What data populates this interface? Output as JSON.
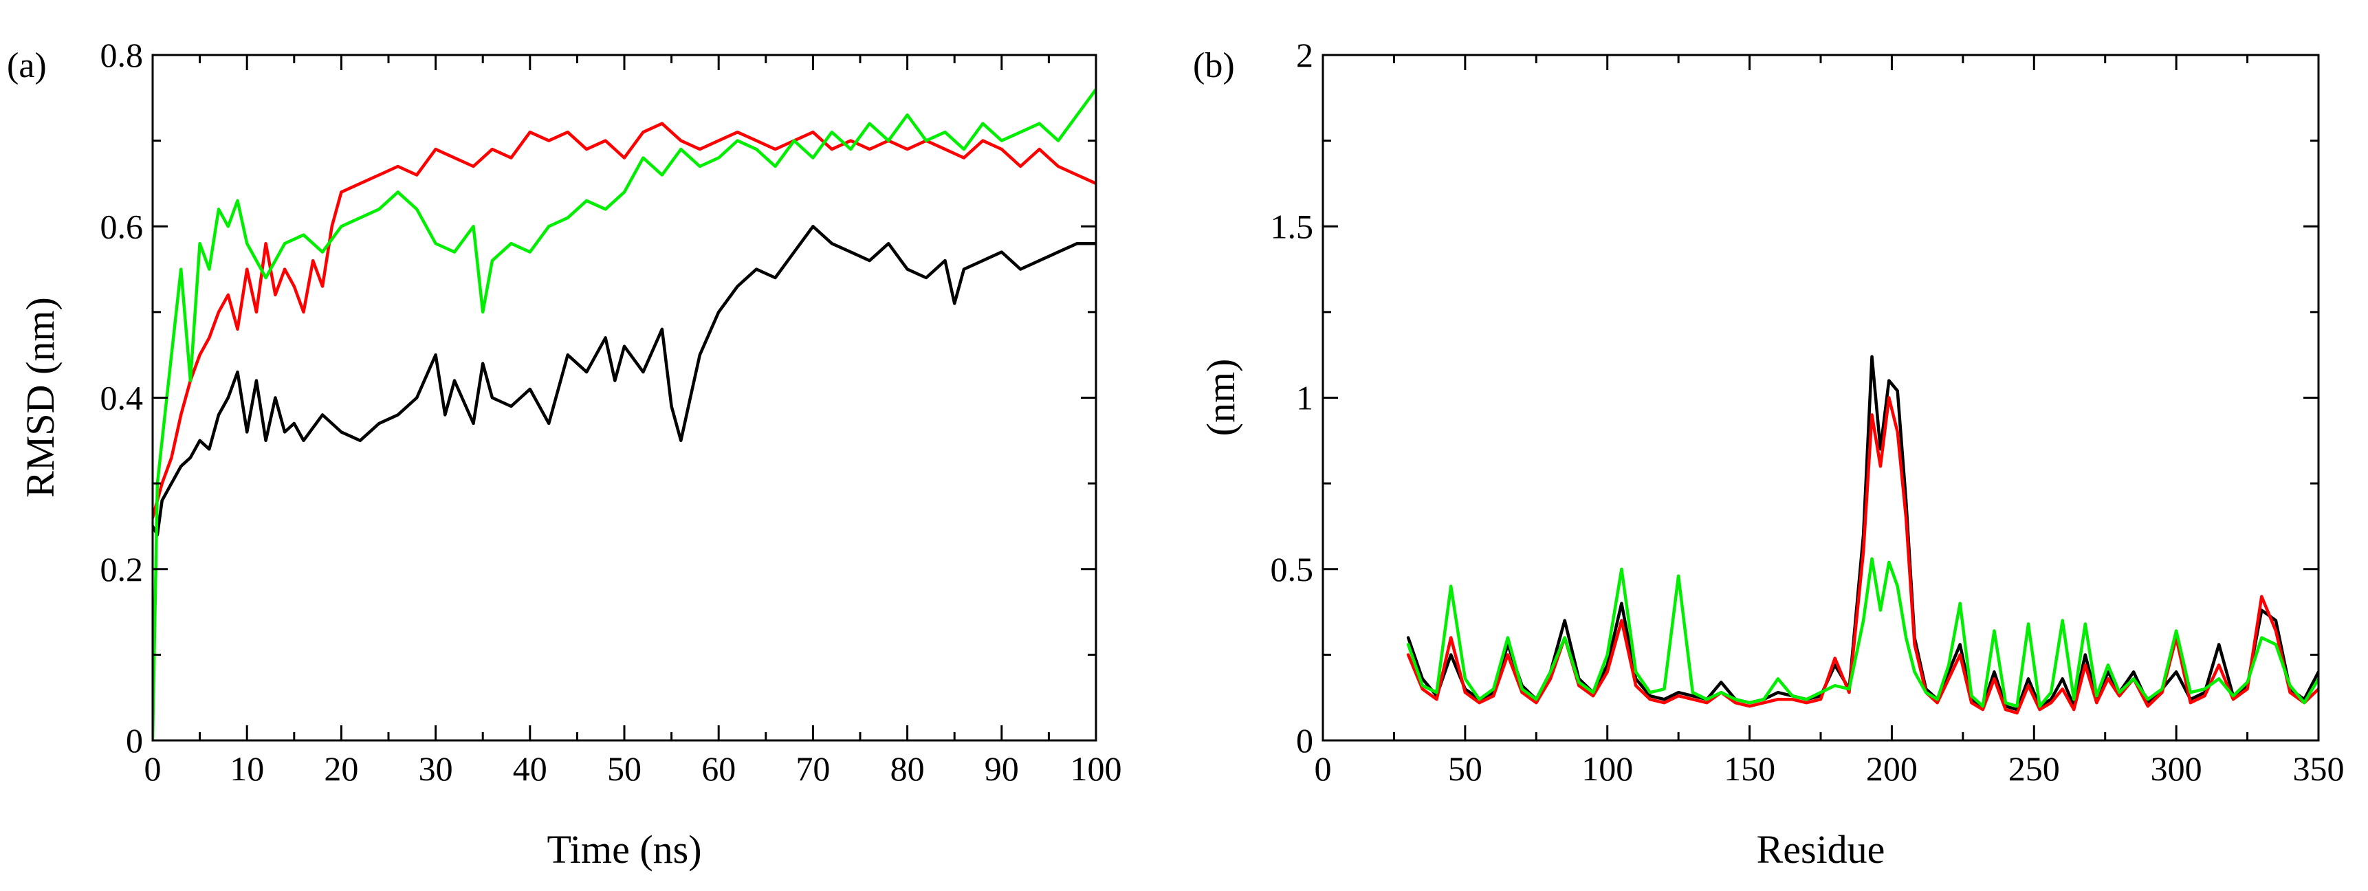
{
  "chart_data": [
    {
      "id": "a",
      "type": "line",
      "panel_label": "(a)",
      "title": "",
      "xlabel": "Time (ns)",
      "ylabel": "RMSD (nm)",
      "xlim": [
        0,
        100
      ],
      "ylim": [
        0,
        0.8
      ],
      "xticks": [
        0,
        10,
        20,
        30,
        40,
        50,
        60,
        70,
        80,
        90,
        100
      ],
      "yticks": [
        0,
        0.2,
        0.4,
        0.6,
        0.8
      ],
      "xtick_labels": [
        "0",
        "10",
        "20",
        "30",
        "40",
        "50",
        "60",
        "70",
        "80",
        "90",
        "100"
      ],
      "ytick_labels": [
        "0",
        "0.2",
        "0.4",
        "0.6",
        "0.8"
      ],
      "grid": false,
      "legend": "none",
      "series": [
        {
          "name": "black",
          "color": "#000000",
          "x": [
            0,
            0.5,
            1,
            2,
            3,
            4,
            5,
            6,
            7,
            8,
            9,
            10,
            11,
            12,
            13,
            14,
            15,
            16,
            18,
            20,
            22,
            24,
            26,
            28,
            30,
            31,
            32,
            34,
            35,
            36,
            38,
            40,
            42,
            44,
            46,
            48,
            49,
            50,
            52,
            54,
            55,
            56,
            57,
            58,
            60,
            62,
            64,
            66,
            68,
            70,
            72,
            74,
            76,
            78,
            80,
            82,
            84,
            85,
            86,
            88,
            90,
            92,
            94,
            96,
            98,
            100
          ],
          "y": [
            0.25,
            0.24,
            0.28,
            0.3,
            0.32,
            0.33,
            0.35,
            0.34,
            0.38,
            0.4,
            0.43,
            0.36,
            0.42,
            0.35,
            0.4,
            0.36,
            0.37,
            0.35,
            0.38,
            0.36,
            0.35,
            0.37,
            0.38,
            0.4,
            0.45,
            0.38,
            0.42,
            0.37,
            0.44,
            0.4,
            0.39,
            0.41,
            0.37,
            0.45,
            0.43,
            0.47,
            0.42,
            0.46,
            0.43,
            0.48,
            0.39,
            0.35,
            0.4,
            0.45,
            0.5,
            0.53,
            0.55,
            0.54,
            0.57,
            0.6,
            0.58,
            0.57,
            0.56,
            0.58,
            0.55,
            0.54,
            0.56,
            0.51,
            0.55,
            0.56,
            0.57,
            0.55,
            0.56,
            0.57,
            0.58,
            0.58
          ]
        },
        {
          "name": "red",
          "color": "#ff0000",
          "x": [
            0,
            0.5,
            1,
            2,
            3,
            4,
            5,
            6,
            7,
            8,
            9,
            10,
            11,
            12,
            13,
            14,
            15,
            16,
            17,
            18,
            19,
            20,
            22,
            24,
            26,
            28,
            30,
            32,
            34,
            36,
            38,
            40,
            42,
            44,
            46,
            48,
            50,
            52,
            54,
            56,
            58,
            60,
            62,
            64,
            66,
            68,
            70,
            72,
            74,
            76,
            78,
            80,
            82,
            84,
            86,
            88,
            90,
            92,
            94,
            96,
            98,
            100
          ],
          "y": [
            0.26,
            0.28,
            0.3,
            0.33,
            0.38,
            0.42,
            0.45,
            0.47,
            0.5,
            0.52,
            0.48,
            0.55,
            0.5,
            0.58,
            0.52,
            0.55,
            0.53,
            0.5,
            0.56,
            0.53,
            0.6,
            0.64,
            0.65,
            0.66,
            0.67,
            0.66,
            0.69,
            0.68,
            0.67,
            0.69,
            0.68,
            0.71,
            0.7,
            0.71,
            0.69,
            0.7,
            0.68,
            0.71,
            0.72,
            0.7,
            0.69,
            0.7,
            0.71,
            0.7,
            0.69,
            0.7,
            0.71,
            0.69,
            0.7,
            0.69,
            0.7,
            0.69,
            0.7,
            0.69,
            0.68,
            0.7,
            0.69,
            0.67,
            0.69,
            0.67,
            0.66,
            0.65
          ]
        },
        {
          "name": "green",
          "color": "#00ee00",
          "x": [
            0,
            0.5,
            1,
            2,
            3,
            4,
            5,
            6,
            7,
            8,
            9,
            10,
            12,
            14,
            16,
            18,
            20,
            22,
            24,
            26,
            28,
            30,
            32,
            34,
            35,
            36,
            38,
            40,
            42,
            44,
            46,
            48,
            50,
            52,
            54,
            56,
            58,
            60,
            62,
            64,
            66,
            68,
            70,
            72,
            74,
            76,
            78,
            80,
            82,
            84,
            86,
            88,
            90,
            92,
            94,
            96,
            98,
            100
          ],
          "y": [
            0.0,
            0.3,
            0.35,
            0.45,
            0.55,
            0.42,
            0.58,
            0.55,
            0.62,
            0.6,
            0.63,
            0.58,
            0.54,
            0.58,
            0.59,
            0.57,
            0.6,
            0.61,
            0.62,
            0.64,
            0.62,
            0.58,
            0.57,
            0.6,
            0.5,
            0.56,
            0.58,
            0.57,
            0.6,
            0.61,
            0.63,
            0.62,
            0.64,
            0.68,
            0.66,
            0.69,
            0.67,
            0.68,
            0.7,
            0.69,
            0.67,
            0.7,
            0.68,
            0.71,
            0.69,
            0.72,
            0.7,
            0.73,
            0.7,
            0.71,
            0.69,
            0.72,
            0.7,
            0.71,
            0.72,
            0.7,
            0.73,
            0.76
          ]
        }
      ]
    },
    {
      "id": "b",
      "type": "line",
      "panel_label": "(b)",
      "title": "",
      "xlabel": "Residue",
      "ylabel": "(nm)",
      "xlim": [
        0,
        350
      ],
      "ylim": [
        0,
        2
      ],
      "xticks": [
        0,
        50,
        100,
        150,
        200,
        250,
        300,
        350
      ],
      "yticks": [
        0,
        0.5,
        1,
        1.5,
        2
      ],
      "xtick_labels": [
        "0",
        "50",
        "100",
        "150",
        "200",
        "250",
        "300",
        "350"
      ],
      "ytick_labels": [
        "0",
        "0.5",
        "1",
        "1.5",
        "2"
      ],
      "grid": false,
      "legend": "none",
      "series": [
        {
          "name": "black",
          "color": "#000000",
          "x": [
            30,
            35,
            40,
            45,
            50,
            55,
            60,
            65,
            70,
            75,
            80,
            85,
            90,
            95,
            100,
            105,
            110,
            115,
            120,
            125,
            130,
            135,
            140,
            145,
            150,
            155,
            160,
            165,
            170,
            175,
            180,
            185,
            190,
            193,
            196,
            199,
            202,
            205,
            208,
            212,
            216,
            220,
            224,
            228,
            232,
            236,
            240,
            244,
            248,
            252,
            256,
            260,
            264,
            268,
            272,
            276,
            280,
            285,
            290,
            295,
            300,
            305,
            310,
            315,
            320,
            325,
            330,
            335,
            340,
            345,
            350
          ],
          "y": [
            0.3,
            0.18,
            0.13,
            0.25,
            0.15,
            0.12,
            0.14,
            0.28,
            0.16,
            0.12,
            0.2,
            0.35,
            0.18,
            0.14,
            0.22,
            0.4,
            0.18,
            0.13,
            0.12,
            0.14,
            0.13,
            0.12,
            0.17,
            0.12,
            0.11,
            0.12,
            0.14,
            0.13,
            0.12,
            0.13,
            0.22,
            0.15,
            0.6,
            1.12,
            0.85,
            1.05,
            1.02,
            0.7,
            0.3,
            0.15,
            0.12,
            0.2,
            0.28,
            0.12,
            0.1,
            0.2,
            0.1,
            0.09,
            0.18,
            0.1,
            0.12,
            0.18,
            0.1,
            0.25,
            0.12,
            0.2,
            0.14,
            0.2,
            0.11,
            0.15,
            0.2,
            0.12,
            0.14,
            0.28,
            0.13,
            0.16,
            0.38,
            0.35,
            0.15,
            0.12,
            0.2
          ]
        },
        {
          "name": "red",
          "color": "#ff0000",
          "x": [
            30,
            35,
            40,
            45,
            50,
            55,
            60,
            65,
            70,
            75,
            80,
            85,
            90,
            95,
            100,
            105,
            110,
            115,
            120,
            125,
            130,
            135,
            140,
            145,
            150,
            155,
            160,
            165,
            170,
            175,
            180,
            185,
            190,
            193,
            196,
            199,
            202,
            205,
            208,
            212,
            216,
            220,
            224,
            228,
            232,
            236,
            240,
            244,
            248,
            252,
            256,
            260,
            264,
            268,
            272,
            276,
            280,
            285,
            290,
            295,
            300,
            305,
            310,
            315,
            320,
            325,
            330,
            335,
            340,
            345,
            350
          ],
          "y": [
            0.25,
            0.15,
            0.12,
            0.3,
            0.14,
            0.11,
            0.13,
            0.25,
            0.14,
            0.11,
            0.18,
            0.3,
            0.16,
            0.13,
            0.2,
            0.35,
            0.16,
            0.12,
            0.11,
            0.13,
            0.12,
            0.11,
            0.14,
            0.11,
            0.1,
            0.11,
            0.12,
            0.12,
            0.11,
            0.12,
            0.24,
            0.14,
            0.55,
            0.95,
            0.8,
            1.0,
            0.9,
            0.65,
            0.28,
            0.14,
            0.11,
            0.18,
            0.25,
            0.11,
            0.09,
            0.18,
            0.09,
            0.08,
            0.16,
            0.09,
            0.11,
            0.15,
            0.09,
            0.22,
            0.11,
            0.18,
            0.13,
            0.18,
            0.1,
            0.14,
            0.3,
            0.11,
            0.13,
            0.22,
            0.12,
            0.15,
            0.42,
            0.32,
            0.14,
            0.11,
            0.15
          ]
        },
        {
          "name": "green",
          "color": "#00ee00",
          "x": [
            30,
            35,
            40,
            45,
            50,
            55,
            60,
            65,
            70,
            75,
            80,
            85,
            90,
            95,
            100,
            105,
            110,
            115,
            120,
            125,
            130,
            135,
            140,
            145,
            150,
            155,
            160,
            165,
            170,
            175,
            180,
            185,
            190,
            193,
            196,
            199,
            202,
            205,
            208,
            212,
            216,
            220,
            224,
            228,
            232,
            236,
            240,
            244,
            248,
            252,
            256,
            260,
            264,
            268,
            272,
            276,
            280,
            285,
            290,
            295,
            300,
            305,
            310,
            315,
            320,
            325,
            330,
            335,
            340,
            345,
            350
          ],
          "y": [
            0.28,
            0.16,
            0.14,
            0.45,
            0.18,
            0.12,
            0.15,
            0.3,
            0.15,
            0.12,
            0.2,
            0.3,
            0.17,
            0.14,
            0.25,
            0.5,
            0.2,
            0.14,
            0.15,
            0.48,
            0.14,
            0.12,
            0.14,
            0.12,
            0.11,
            0.12,
            0.18,
            0.13,
            0.12,
            0.14,
            0.16,
            0.15,
            0.35,
            0.53,
            0.38,
            0.52,
            0.45,
            0.3,
            0.2,
            0.14,
            0.12,
            0.22,
            0.4,
            0.13,
            0.1,
            0.32,
            0.11,
            0.1,
            0.34,
            0.1,
            0.14,
            0.35,
            0.12,
            0.34,
            0.13,
            0.22,
            0.14,
            0.18,
            0.12,
            0.15,
            0.32,
            0.14,
            0.15,
            0.18,
            0.13,
            0.17,
            0.3,
            0.28,
            0.16,
            0.11,
            0.18
          ]
        }
      ]
    }
  ]
}
